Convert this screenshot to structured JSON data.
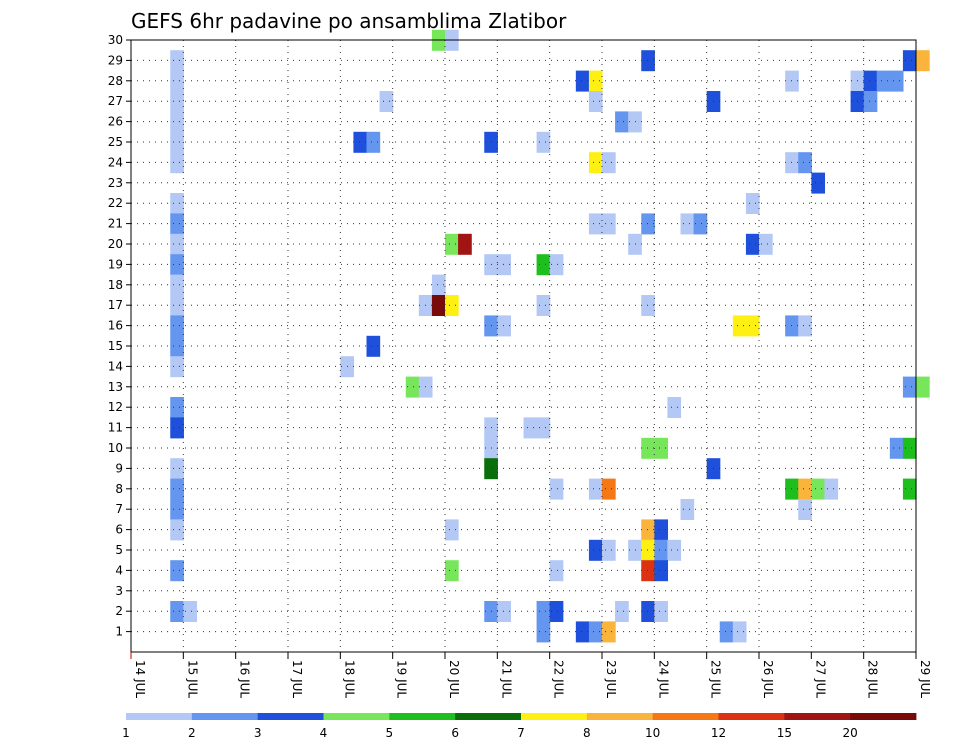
{
  "chart_data": {
    "type": "heatmap",
    "title": "GEFS 6hr padavine po ansamblima Zlatibor",
    "xlabel": "",
    "ylabel": "",
    "x_range_days": [
      14,
      29
    ],
    "x_month": "JUL",
    "x_tick_labels": [
      "14 JUL",
      "15 JUL",
      "16 JUL",
      "17 JUL",
      "18 JUL",
      "19 JUL",
      "20 JUL",
      "21 JUL",
      "22 JUL",
      "23 JUL",
      "24 JUL",
      "25 JUL",
      "26 JUL",
      "27 JUL",
      "28 JUL",
      "29 JUL"
    ],
    "y_range": [
      0,
      30
    ],
    "y_tick_labels": [
      "1",
      "2",
      "3",
      "4",
      "5",
      "6",
      "7",
      "8",
      "9",
      "10",
      "11",
      "12",
      "13",
      "14",
      "15",
      "16",
      "17",
      "18",
      "19",
      "20",
      "21",
      "22",
      "23",
      "24",
      "25",
      "26",
      "27",
      "28",
      "29",
      "30"
    ],
    "grid": "dotted",
    "step_hours": 6,
    "colorbar": {
      "position": "bottom",
      "colors": [
        "#b4c8f5",
        "#6496f0",
        "#1e50dc",
        "#78e65a",
        "#1ebe1e",
        "#0a6e0a",
        "#fff014",
        "#fab43c",
        "#f57814",
        "#dc3214",
        "#a01414",
        "#780a0a"
      ],
      "labels": [
        "1",
        "2",
        "3",
        "4",
        "5",
        "6",
        "7",
        "8",
        "10",
        "12",
        "15",
        "20"
      ]
    },
    "cells": [
      [
        14.75,
        1,
        29
      ],
      [
        14.75,
        1,
        28
      ],
      [
        14.75,
        1,
        27
      ],
      [
        14.75,
        1,
        26
      ],
      [
        14.75,
        1,
        25
      ],
      [
        14.75,
        1,
        24
      ],
      [
        14.75,
        1,
        22
      ],
      [
        14.75,
        2,
        21
      ],
      [
        14.75,
        1,
        20
      ],
      [
        14.75,
        2,
        19
      ],
      [
        14.75,
        1,
        18
      ],
      [
        14.75,
        1,
        17
      ],
      [
        14.75,
        2,
        16
      ],
      [
        14.75,
        2,
        15
      ],
      [
        14.75,
        1,
        14
      ],
      [
        14.75,
        2,
        12
      ],
      [
        14.75,
        3,
        11
      ],
      [
        14.75,
        1,
        9
      ],
      [
        14.75,
        2,
        8
      ],
      [
        14.75,
        2,
        7
      ],
      [
        14.75,
        1,
        6
      ],
      [
        14.75,
        2,
        4
      ],
      [
        14.75,
        2,
        2
      ],
      [
        15.0,
        1,
        2
      ],
      [
        19.75,
        4,
        30
      ],
      [
        20.0,
        1,
        30
      ],
      [
        18.75,
        1,
        27
      ],
      [
        18.25,
        3,
        25
      ],
      [
        18.5,
        2,
        25
      ],
      [
        20.0,
        4,
        20
      ],
      [
        20.25,
        11,
        20
      ],
      [
        19.75,
        1,
        18
      ],
      [
        19.5,
        1,
        17
      ],
      [
        19.75,
        12,
        17
      ],
      [
        20.0,
        7,
        17
      ],
      [
        18.5,
        3,
        15
      ],
      [
        18.0,
        1,
        14
      ],
      [
        19.25,
        4,
        13
      ],
      [
        19.5,
        1,
        13
      ],
      [
        20.0,
        1,
        6
      ],
      [
        20.0,
        4,
        4
      ],
      [
        20.75,
        3,
        25
      ],
      [
        20.75,
        1,
        19
      ],
      [
        21.0,
        1,
        19
      ],
      [
        20.75,
        2,
        16
      ],
      [
        21.0,
        1,
        16
      ],
      [
        20.75,
        1,
        11
      ],
      [
        20.75,
        1,
        10
      ],
      [
        20.75,
        6,
        9
      ],
      [
        20.75,
        2,
        2
      ],
      [
        21.0,
        1,
        2
      ],
      [
        21.75,
        1,
        25
      ],
      [
        21.75,
        5,
        19
      ],
      [
        22.0,
        1,
        19
      ],
      [
        21.75,
        1,
        17
      ],
      [
        21.5,
        1,
        11
      ],
      [
        21.75,
        1,
        11
      ],
      [
        22.0,
        1,
        8
      ],
      [
        22.0,
        1,
        4
      ],
      [
        21.75,
        2,
        2
      ],
      [
        22.0,
        3,
        2
      ],
      [
        21.75,
        2,
        1
      ],
      [
        22.5,
        3,
        28
      ],
      [
        22.75,
        7,
        28
      ],
      [
        22.75,
        1,
        27
      ],
      [
        22.75,
        7,
        24
      ],
      [
        23.0,
        1,
        24
      ],
      [
        22.75,
        1,
        21
      ],
      [
        23.0,
        1,
        21
      ],
      [
        22.75,
        1,
        8
      ],
      [
        23.0,
        9,
        8
      ],
      [
        22.75,
        3,
        5
      ],
      [
        23.0,
        1,
        5
      ],
      [
        23.25,
        1,
        2
      ],
      [
        22.5,
        3,
        1
      ],
      [
        22.75,
        2,
        1
      ],
      [
        23.0,
        8,
        1
      ],
      [
        23.75,
        3,
        29
      ],
      [
        23.25,
        2,
        26
      ],
      [
        23.5,
        1,
        26
      ],
      [
        23.75,
        2,
        21
      ],
      [
        23.5,
        1,
        20
      ],
      [
        23.75,
        1,
        17
      ],
      [
        23.75,
        4,
        10
      ],
      [
        24.0,
        4,
        10
      ],
      [
        23.75,
        8,
        6
      ],
      [
        24.0,
        3,
        6
      ],
      [
        23.5,
        1,
        5
      ],
      [
        23.75,
        7,
        5
      ],
      [
        24.0,
        2,
        5
      ],
      [
        24.25,
        1,
        5
      ],
      [
        23.75,
        10,
        4
      ],
      [
        24.0,
        3,
        4
      ],
      [
        23.75,
        3,
        2
      ],
      [
        24.0,
        1,
        2
      ],
      [
        24.25,
        1,
        12
      ],
      [
        24.5,
        1,
        7
      ],
      [
        24.5,
        1,
        21
      ],
      [
        24.75,
        2,
        21
      ],
      [
        25.0,
        3,
        27
      ],
      [
        25.0,
        3,
        9
      ],
      [
        25.25,
        2,
        1
      ],
      [
        25.5,
        1,
        1
      ],
      [
        25.5,
        7,
        16
      ],
      [
        25.75,
        7,
        16
      ],
      [
        25.75,
        1,
        22
      ],
      [
        25.75,
        3,
        20
      ],
      [
        26.0,
        1,
        20
      ],
      [
        26.5,
        1,
        28
      ],
      [
        26.5,
        1,
        24
      ],
      [
        26.75,
        2,
        24
      ],
      [
        27.0,
        3,
        23
      ],
      [
        26.5,
        2,
        16
      ],
      [
        26.75,
        1,
        16
      ],
      [
        26.5,
        5,
        8
      ],
      [
        26.75,
        8,
        8
      ],
      [
        27.0,
        4,
        8
      ],
      [
        27.25,
        1,
        8
      ],
      [
        26.75,
        1,
        7
      ],
      [
        27.75,
        1,
        28
      ],
      [
        28.0,
        3,
        28
      ],
      [
        28.25,
        2,
        28
      ],
      [
        28.5,
        2,
        28
      ],
      [
        27.75,
        3,
        27
      ],
      [
        28.0,
        2,
        27
      ],
      [
        28.75,
        3,
        29
      ],
      [
        29.0,
        8,
        29
      ],
      [
        28.75,
        2,
        13
      ],
      [
        29.0,
        4,
        13
      ],
      [
        28.5,
        2,
        10
      ],
      [
        28.75,
        5,
        10
      ],
      [
        28.75,
        5,
        8
      ]
    ]
  }
}
